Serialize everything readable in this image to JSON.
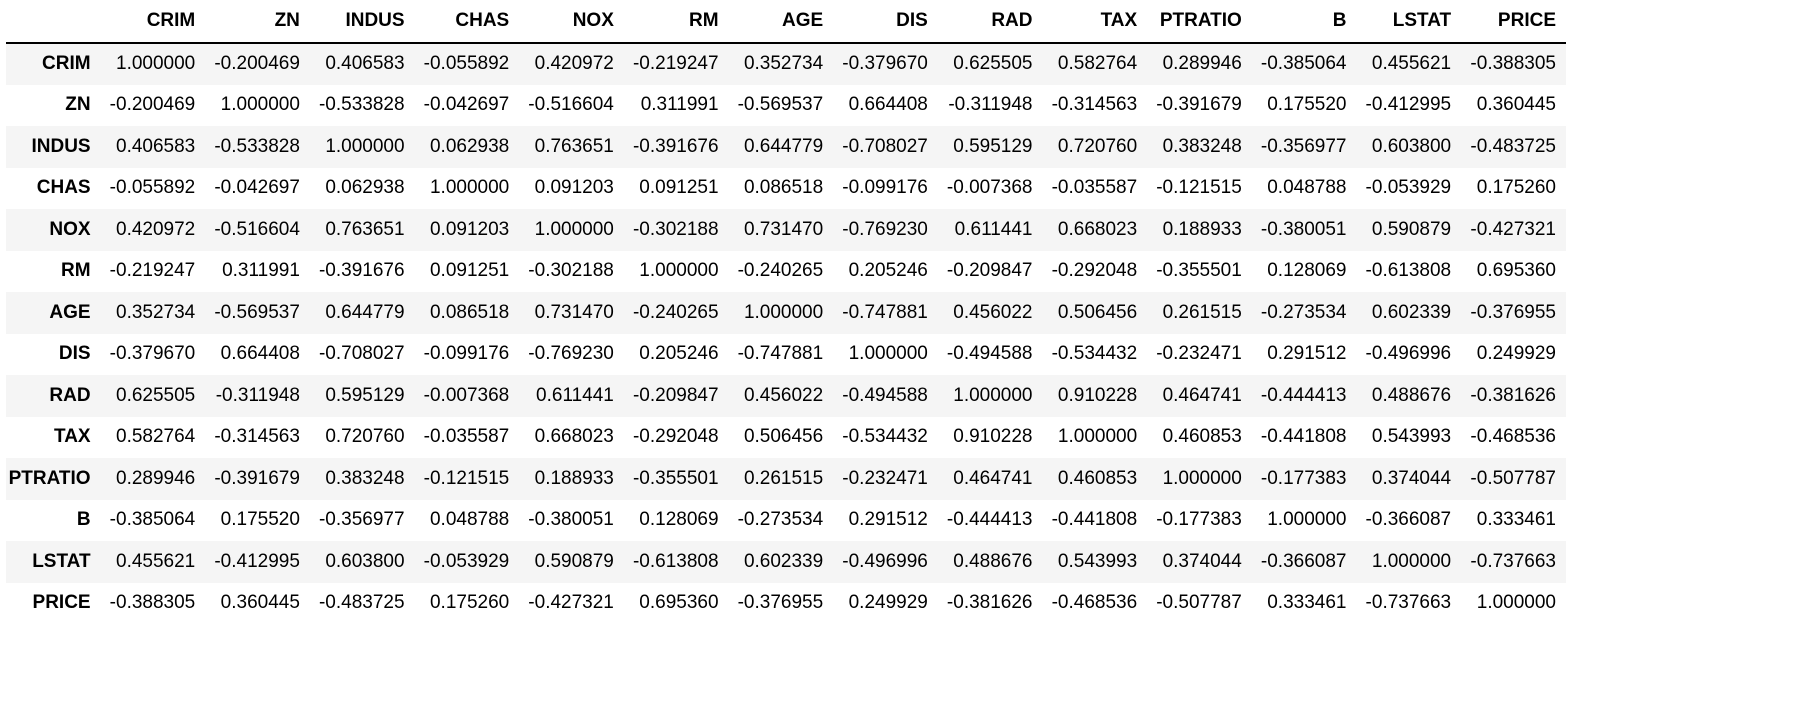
{
  "table": {
    "index_header": "",
    "columns": [
      "CRIM",
      "ZN",
      "INDUS",
      "CHAS",
      "NOX",
      "RM",
      "AGE",
      "DIS",
      "RAD",
      "TAX",
      "PTRATIO",
      "B",
      "LSTAT",
      "PRICE"
    ],
    "rows": [
      {
        "label": "CRIM",
        "values": [
          "1.000000",
          "-0.200469",
          "0.406583",
          "-0.055892",
          "0.420972",
          "-0.219247",
          "0.352734",
          "-0.379670",
          "0.625505",
          "0.582764",
          "0.289946",
          "-0.385064",
          "0.455621",
          "-0.388305"
        ]
      },
      {
        "label": "ZN",
        "values": [
          "-0.200469",
          "1.000000",
          "-0.533828",
          "-0.042697",
          "-0.516604",
          "0.311991",
          "-0.569537",
          "0.664408",
          "-0.311948",
          "-0.314563",
          "-0.391679",
          "0.175520",
          "-0.412995",
          "0.360445"
        ]
      },
      {
        "label": "INDUS",
        "values": [
          "0.406583",
          "-0.533828",
          "1.000000",
          "0.062938",
          "0.763651",
          "-0.391676",
          "0.644779",
          "-0.708027",
          "0.595129",
          "0.720760",
          "0.383248",
          "-0.356977",
          "0.603800",
          "-0.483725"
        ]
      },
      {
        "label": "CHAS",
        "values": [
          "-0.055892",
          "-0.042697",
          "0.062938",
          "1.000000",
          "0.091203",
          "0.091251",
          "0.086518",
          "-0.099176",
          "-0.007368",
          "-0.035587",
          "-0.121515",
          "0.048788",
          "-0.053929",
          "0.175260"
        ]
      },
      {
        "label": "NOX",
        "values": [
          "0.420972",
          "-0.516604",
          "0.763651",
          "0.091203",
          "1.000000",
          "-0.302188",
          "0.731470",
          "-0.769230",
          "0.611441",
          "0.668023",
          "0.188933",
          "-0.380051",
          "0.590879",
          "-0.427321"
        ]
      },
      {
        "label": "RM",
        "values": [
          "-0.219247",
          "0.311991",
          "-0.391676",
          "0.091251",
          "-0.302188",
          "1.000000",
          "-0.240265",
          "0.205246",
          "-0.209847",
          "-0.292048",
          "-0.355501",
          "0.128069",
          "-0.613808",
          "0.695360"
        ]
      },
      {
        "label": "AGE",
        "values": [
          "0.352734",
          "-0.569537",
          "0.644779",
          "0.086518",
          "0.731470",
          "-0.240265",
          "1.000000",
          "-0.747881",
          "0.456022",
          "0.506456",
          "0.261515",
          "-0.273534",
          "0.602339",
          "-0.376955"
        ]
      },
      {
        "label": "DIS",
        "values": [
          "-0.379670",
          "0.664408",
          "-0.708027",
          "-0.099176",
          "-0.769230",
          "0.205246",
          "-0.747881",
          "1.000000",
          "-0.494588",
          "-0.534432",
          "-0.232471",
          "0.291512",
          "-0.496996",
          "0.249929"
        ]
      },
      {
        "label": "RAD",
        "values": [
          "0.625505",
          "-0.311948",
          "0.595129",
          "-0.007368",
          "0.611441",
          "-0.209847",
          "0.456022",
          "-0.494588",
          "1.000000",
          "0.910228",
          "0.464741",
          "-0.444413",
          "0.488676",
          "-0.381626"
        ]
      },
      {
        "label": "TAX",
        "values": [
          "0.582764",
          "-0.314563",
          "0.720760",
          "-0.035587",
          "0.668023",
          "-0.292048",
          "0.506456",
          "-0.534432",
          "0.910228",
          "1.000000",
          "0.460853",
          "-0.441808",
          "0.543993",
          "-0.468536"
        ]
      },
      {
        "label": "PTRATIO",
        "values": [
          "0.289946",
          "-0.391679",
          "0.383248",
          "-0.121515",
          "0.188933",
          "-0.355501",
          "0.261515",
          "-0.232471",
          "0.464741",
          "0.460853",
          "1.000000",
          "-0.177383",
          "0.374044",
          "-0.507787"
        ]
      },
      {
        "label": "B",
        "values": [
          "-0.385064",
          "0.175520",
          "-0.356977",
          "0.048788",
          "-0.380051",
          "0.128069",
          "-0.273534",
          "0.291512",
          "-0.444413",
          "-0.441808",
          "-0.177383",
          "1.000000",
          "-0.366087",
          "0.333461"
        ]
      },
      {
        "label": "LSTAT",
        "values": [
          "0.455621",
          "-0.412995",
          "0.603800",
          "-0.053929",
          "0.590879",
          "-0.613808",
          "0.602339",
          "-0.496996",
          "0.488676",
          "0.543993",
          "0.374044",
          "-0.366087",
          "1.000000",
          "-0.737663"
        ]
      },
      {
        "label": "PRICE",
        "values": [
          "-0.388305",
          "0.360445",
          "-0.483725",
          "0.175260",
          "-0.427321",
          "0.695360",
          "-0.376955",
          "0.249929",
          "-0.381626",
          "-0.468536",
          "-0.507787",
          "0.333461",
          "-0.737663",
          "1.000000"
        ]
      }
    ]
  },
  "colors": {
    "striped_row_background": "#f5f5f5",
    "header_border": "#000000"
  }
}
